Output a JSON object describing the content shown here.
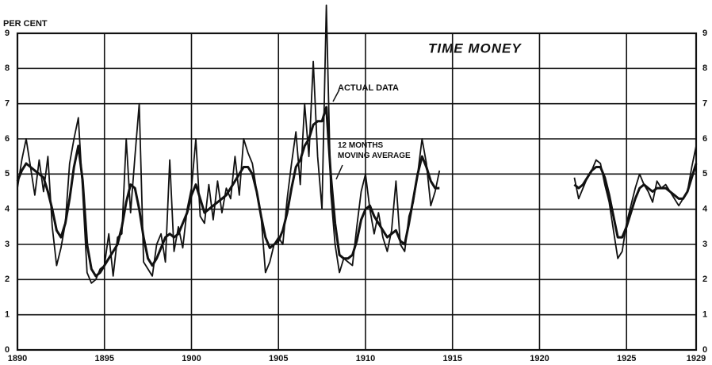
{
  "chart_data": {
    "type": "line",
    "title": "TIME MONEY",
    "y_label": "PER CENT",
    "xlim": [
      1890,
      1929
    ],
    "xticks": [
      1890,
      1895,
      1900,
      1905,
      1910,
      1915,
      1920,
      1925,
      1929
    ],
    "ylim": [
      0,
      9
    ],
    "yticks": [
      0,
      1,
      2,
      3,
      4,
      5,
      6,
      7,
      8,
      9
    ],
    "y2lim": [
      0,
      9
    ],
    "y2ticks": [
      0,
      1,
      2,
      3,
      4,
      5,
      6,
      7,
      8,
      9
    ],
    "grid": true,
    "x": [
      1890,
      1890.25,
      1890.5,
      1890.75,
      1891,
      1891.25,
      1891.5,
      1891.75,
      1892,
      1892.25,
      1892.5,
      1892.75,
      1893,
      1893.25,
      1893.5,
      1893.75,
      1894,
      1894.25,
      1894.5,
      1894.75,
      1895,
      1895.25,
      1895.5,
      1895.75,
      1896,
      1896.25,
      1896.5,
      1896.75,
      1897,
      1897.25,
      1897.5,
      1897.75,
      1898,
      1898.25,
      1898.5,
      1898.75,
      1899,
      1899.25,
      1899.5,
      1899.75,
      1900,
      1900.25,
      1900.5,
      1900.75,
      1901,
      1901.25,
      1901.5,
      1901.75,
      1902,
      1902.25,
      1902.5,
      1902.75,
      1903,
      1903.25,
      1903.5,
      1903.75,
      1904,
      1904.25,
      1904.5,
      1904.75,
      1905,
      1905.25,
      1905.5,
      1905.75,
      1906,
      1906.25,
      1906.5,
      1906.75,
      1907,
      1907.25,
      1907.5,
      1907.75,
      1908,
      1908.25,
      1908.5,
      1908.75,
      1909,
      1909.25,
      1909.5,
      1909.75,
      1910,
      1910.25,
      1910.5,
      1910.75,
      1911,
      1911.25,
      1911.5,
      1911.75,
      1912,
      1912.25,
      1912.5,
      1912.75,
      1913,
      1913.25,
      1913.5,
      1913.75,
      1914,
      1914.25,
      1918,
      1922,
      1922.25,
      1922.5,
      1922.75,
      1923,
      1923.25,
      1923.5,
      1923.75,
      1924,
      1924.25,
      1924.5,
      1924.75,
      1925,
      1925.25,
      1925.5,
      1925.75,
      1926,
      1926.25,
      1926.5,
      1926.75,
      1927,
      1927.25,
      1927.5,
      1927.75,
      1928,
      1928.25,
      1928.5,
      1928.75,
      1929
    ],
    "series": [
      {
        "name": "ACTUAL DATA",
        "color": "#111111",
        "values": [
          4.6,
          5.4,
          6.0,
          5.2,
          4.4,
          5.4,
          4.5,
          5.5,
          3.5,
          2.4,
          2.9,
          3.6,
          5.3,
          6.0,
          6.6,
          4.5,
          2.2,
          1.9,
          2.0,
          2.3,
          2.4,
          3.3,
          2.1,
          3.2,
          3.3,
          6.0,
          3.9,
          5.5,
          7.0,
          2.5,
          2.3,
          2.1,
          3.0,
          3.3,
          2.5,
          5.4,
          2.8,
          3.5,
          2.9,
          4.0,
          4.6,
          6.0,
          3.8,
          3.6,
          4.7,
          3.7,
          4.8,
          3.9,
          4.6,
          4.3,
          5.5,
          4.4,
          6.0,
          5.6,
          5.3,
          4.5,
          3.8,
          2.2,
          2.5,
          3.0,
          3.2,
          3.0,
          4.3,
          5.3,
          6.2,
          4.7,
          7.0,
          5.5,
          8.2,
          5.5,
          4.0,
          9.8,
          4.5,
          3.0,
          2.2,
          2.6,
          2.5,
          2.4,
          3.5,
          4.5,
          5.0,
          4.0,
          3.3,
          3.9,
          3.2,
          2.8,
          3.4,
          4.8,
          3.0,
          2.8,
          3.8,
          4.2,
          5.0,
          6.0,
          5.3,
          4.1,
          4.5,
          5.1,
          null,
          4.9,
          4.3,
          4.6,
          4.9,
          5.1,
          5.4,
          5.3,
          4.7,
          4.2,
          3.4,
          2.6,
          2.8,
          3.6,
          4.1,
          4.6,
          5.0,
          4.7,
          4.5,
          4.2,
          4.8,
          4.6,
          4.7,
          4.5,
          4.3,
          4.1,
          4.3,
          4.5,
          5.2,
          5.8
        ]
      },
      {
        "name": "12 MONTHS MOVING AVERAGE",
        "color": "#111111",
        "values": [
          4.8,
          5.1,
          5.3,
          5.2,
          5.1,
          5.0,
          4.9,
          4.5,
          4.0,
          3.4,
          3.2,
          3.6,
          4.3,
          5.2,
          5.8,
          4.8,
          3.0,
          2.3,
          2.1,
          2.2,
          2.4,
          2.6,
          2.8,
          3.0,
          3.5,
          4.2,
          4.7,
          4.6,
          4.0,
          3.2,
          2.6,
          2.4,
          2.6,
          2.9,
          3.2,
          3.3,
          3.2,
          3.3,
          3.6,
          3.9,
          4.4,
          4.7,
          4.3,
          3.9,
          4.0,
          4.1,
          4.2,
          4.3,
          4.4,
          4.6,
          4.8,
          5.0,
          5.2,
          5.2,
          5.0,
          4.5,
          3.8,
          3.2,
          2.9,
          3.0,
          3.1,
          3.4,
          3.9,
          4.6,
          5.2,
          5.4,
          5.8,
          6.0,
          6.4,
          6.5,
          6.5,
          6.9,
          5.0,
          3.6,
          2.7,
          2.6,
          2.6,
          2.7,
          3.1,
          3.7,
          4.0,
          4.1,
          3.8,
          3.6,
          3.4,
          3.2,
          3.3,
          3.4,
          3.1,
          3.0,
          3.6,
          4.3,
          5.0,
          5.5,
          5.2,
          4.8,
          4.6,
          4.6,
          null,
          4.7,
          4.6,
          4.7,
          4.9,
          5.1,
          5.2,
          5.2,
          4.9,
          4.4,
          3.8,
          3.2,
          3.2,
          3.5,
          3.9,
          4.3,
          4.6,
          4.7,
          4.6,
          4.5,
          4.6,
          4.6,
          4.6,
          4.5,
          4.4,
          4.3,
          4.3,
          4.5,
          4.9,
          5.3
        ]
      }
    ]
  }
}
